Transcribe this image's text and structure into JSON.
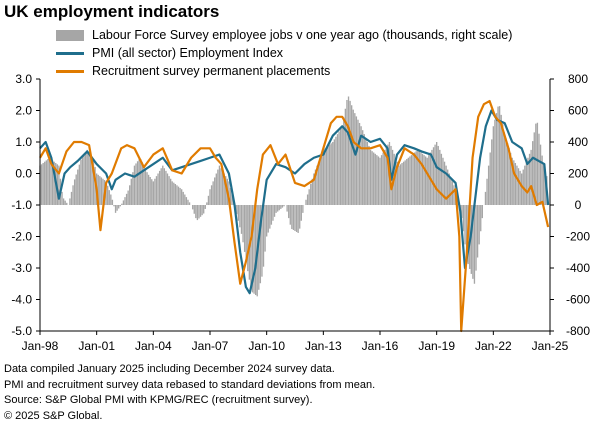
{
  "chart_data": {
    "type": "bar+line",
    "title": "UK employment indicators",
    "legend_position": "top",
    "grid": false,
    "x_tick_labels": [
      "Jan-98",
      "Jan-01",
      "Jan-04",
      "Jan-07",
      "Jan-10",
      "Jan-13",
      "Jan-16",
      "Jan-19",
      "Jan-22",
      "Jan-25"
    ],
    "x_range": [
      1998.0,
      2025.0
    ],
    "y_left": {
      "range": [
        -5.0,
        3.0
      ],
      "ticks": [
        "3.0",
        "2.0",
        "1.0",
        "0.0",
        "-1.0",
        "-2.0",
        "-3.0",
        "-4.0",
        "-5.0"
      ]
    },
    "y_right": {
      "range": [
        -800,
        800
      ],
      "ticks": [
        "800",
        "600",
        "400",
        "200",
        "0",
        "-200",
        "-400",
        "-600",
        "-800"
      ]
    },
    "series": [
      {
        "name": "Labour Force Survey employee jobs v one year ago (thousands, right scale)",
        "type": "bar",
        "axis": "right",
        "color": "#a6a6a6",
        "points": [
          [
            1998.0,
            250
          ],
          [
            1998.5,
            300
          ],
          [
            1999.0,
            250
          ],
          [
            1999.2,
            50
          ],
          [
            1999.5,
            0
          ],
          [
            1999.8,
            150
          ],
          [
            2000.2,
            300
          ],
          [
            2000.5,
            350
          ],
          [
            2000.8,
            300
          ],
          [
            2001.0,
            200
          ],
          [
            2001.5,
            150
          ],
          [
            2001.8,
            50
          ],
          [
            2002.0,
            -50
          ],
          [
            2002.3,
            0
          ],
          [
            2002.7,
            100
          ],
          [
            2003.0,
            250
          ],
          [
            2003.3,
            300
          ],
          [
            2003.7,
            200
          ],
          [
            2004.0,
            150
          ],
          [
            2004.5,
            250
          ],
          [
            2005.0,
            150
          ],
          [
            2005.5,
            100
          ],
          [
            2006.0,
            0
          ],
          [
            2006.3,
            -100
          ],
          [
            2006.7,
            -50
          ],
          [
            2007.0,
            100
          ],
          [
            2007.5,
            250
          ],
          [
            2008.0,
            150
          ],
          [
            2008.3,
            0
          ],
          [
            2008.7,
            -200
          ],
          [
            2009.0,
            -420
          ],
          [
            2009.2,
            -550
          ],
          [
            2009.5,
            -580
          ],
          [
            2009.8,
            -430
          ],
          [
            2010.0,
            -200
          ],
          [
            2010.5,
            -50
          ],
          [
            2011.0,
            0
          ],
          [
            2011.3,
            -150
          ],
          [
            2011.7,
            -180
          ],
          [
            2012.0,
            0
          ],
          [
            2012.5,
            200
          ],
          [
            2013.0,
            350
          ],
          [
            2013.5,
            400
          ],
          [
            2014.0,
            500
          ],
          [
            2014.3,
            700
          ],
          [
            2014.6,
            600
          ],
          [
            2015.0,
            500
          ],
          [
            2015.5,
            350
          ],
          [
            2016.0,
            300
          ],
          [
            2016.5,
            400
          ],
          [
            2017.0,
            250
          ],
          [
            2017.5,
            300
          ],
          [
            2018.0,
            350
          ],
          [
            2018.5,
            300
          ],
          [
            2019.0,
            400
          ],
          [
            2019.5,
            250
          ],
          [
            2020.0,
            100
          ],
          [
            2020.3,
            -50
          ],
          [
            2020.6,
            -350
          ],
          [
            2021.0,
            -500
          ],
          [
            2021.3,
            -200
          ],
          [
            2021.6,
            100
          ],
          [
            2022.0,
            500
          ],
          [
            2022.3,
            650
          ],
          [
            2022.6,
            450
          ],
          [
            2023.0,
            300
          ],
          [
            2023.5,
            200
          ],
          [
            2024.0,
            350
          ],
          [
            2024.3,
            550
          ],
          [
            2024.6,
            300
          ],
          [
            2024.9,
            150
          ]
        ]
      },
      {
        "name": "PMI (all sector) Employment Index",
        "type": "line",
        "axis": "left",
        "color": "#1f6e8c",
        "points": [
          [
            1998.0,
            0.8
          ],
          [
            1998.3,
            1.0
          ],
          [
            1998.6,
            0.5
          ],
          [
            1999.0,
            -0.8
          ],
          [
            1999.3,
            0.0
          ],
          [
            1999.6,
            0.2
          ],
          [
            2000.0,
            0.4
          ],
          [
            2000.5,
            0.7
          ],
          [
            2001.0,
            0.3
          ],
          [
            2001.5,
            0.0
          ],
          [
            2001.8,
            -0.5
          ],
          [
            2002.0,
            -0.2
          ],
          [
            2002.5,
            0.0
          ],
          [
            2003.0,
            -0.1
          ],
          [
            2003.5,
            0.1
          ],
          [
            2004.0,
            0.3
          ],
          [
            2004.5,
            0.5
          ],
          [
            2005.0,
            0.1
          ],
          [
            2005.5,
            0.2
          ],
          [
            2006.0,
            0.3
          ],
          [
            2006.5,
            0.4
          ],
          [
            2007.0,
            0.5
          ],
          [
            2007.5,
            0.6
          ],
          [
            2008.0,
            0.0
          ],
          [
            2008.3,
            -1.0
          ],
          [
            2008.6,
            -2.5
          ],
          [
            2008.9,
            -3.6
          ],
          [
            2009.1,
            -3.8
          ],
          [
            2009.4,
            -3.0
          ],
          [
            2009.7,
            -1.5
          ],
          [
            2010.0,
            -0.2
          ],
          [
            2010.5,
            0.3
          ],
          [
            2011.0,
            0.2
          ],
          [
            2011.5,
            0.0
          ],
          [
            2012.0,
            0.3
          ],
          [
            2012.5,
            0.5
          ],
          [
            2013.0,
            0.6
          ],
          [
            2013.5,
            1.2
          ],
          [
            2014.0,
            1.5
          ],
          [
            2014.3,
            1.3
          ],
          [
            2014.7,
            0.6
          ],
          [
            2015.0,
            1.2
          ],
          [
            2015.5,
            1.0
          ],
          [
            2016.0,
            1.1
          ],
          [
            2016.4,
            0.8
          ],
          [
            2016.6,
            -0.2
          ],
          [
            2016.9,
            0.6
          ],
          [
            2017.3,
            0.9
          ],
          [
            2017.8,
            0.8
          ],
          [
            2018.2,
            0.7
          ],
          [
            2018.7,
            0.6
          ],
          [
            2019.0,
            0.2
          ],
          [
            2019.5,
            0.0
          ],
          [
            2020.0,
            -0.3
          ],
          [
            2020.25,
            -1.2
          ],
          [
            2020.5,
            -3.0
          ],
          [
            2020.8,
            -2.0
          ],
          [
            2021.0,
            -1.0
          ],
          [
            2021.3,
            0.5
          ],
          [
            2021.6,
            1.5
          ],
          [
            2021.9,
            2.0
          ],
          [
            2022.2,
            1.7
          ],
          [
            2022.6,
            1.6
          ],
          [
            2023.0,
            1.0
          ],
          [
            2023.5,
            0.8
          ],
          [
            2023.8,
            0.3
          ],
          [
            2024.1,
            0.5
          ],
          [
            2024.4,
            0.4
          ],
          [
            2024.7,
            0.3
          ],
          [
            2024.9,
            -1.0
          ]
        ]
      },
      {
        "name": "Recruitment survey permanent placements",
        "type": "line",
        "axis": "left",
        "color": "#e07b00",
        "points": [
          [
            1998.0,
            0.5
          ],
          [
            1998.3,
            0.8
          ],
          [
            1998.6,
            0.3
          ],
          [
            1999.0,
            0.0
          ],
          [
            1999.4,
            0.7
          ],
          [
            1999.8,
            1.0
          ],
          [
            2000.2,
            1.0
          ],
          [
            2000.6,
            0.9
          ],
          [
            2001.0,
            -0.5
          ],
          [
            2001.2,
            -1.8
          ],
          [
            2001.5,
            -0.3
          ],
          [
            2001.8,
            0.0
          ],
          [
            2002.3,
            0.8
          ],
          [
            2002.6,
            0.9
          ],
          [
            2003.0,
            0.8
          ],
          [
            2003.5,
            0.2
          ],
          [
            2004.0,
            0.6
          ],
          [
            2004.5,
            0.8
          ],
          [
            2005.0,
            0.1
          ],
          [
            2005.5,
            0.0
          ],
          [
            2006.0,
            0.5
          ],
          [
            2006.5,
            0.8
          ],
          [
            2007.0,
            0.8
          ],
          [
            2007.3,
            0.5
          ],
          [
            2007.6,
            0.3
          ],
          [
            2008.0,
            -0.8
          ],
          [
            2008.3,
            -2.2
          ],
          [
            2008.6,
            -3.5
          ],
          [
            2008.9,
            -2.8
          ],
          [
            2009.2,
            -2.0
          ],
          [
            2009.5,
            -0.5
          ],
          [
            2009.8,
            0.6
          ],
          [
            2010.2,
            0.9
          ],
          [
            2010.6,
            0.3
          ],
          [
            2011.0,
            0.6
          ],
          [
            2011.5,
            -0.3
          ],
          [
            2012.0,
            -0.4
          ],
          [
            2012.5,
            -0.2
          ],
          [
            2013.0,
            0.8
          ],
          [
            2013.4,
            1.6
          ],
          [
            2013.7,
            1.8
          ],
          [
            2014.0,
            1.8
          ],
          [
            2014.3,
            1.5
          ],
          [
            2014.6,
            1.0
          ],
          [
            2015.0,
            0.8
          ],
          [
            2015.5,
            0.8
          ],
          [
            2016.0,
            0.9
          ],
          [
            2016.4,
            0.5
          ],
          [
            2016.6,
            -0.5
          ],
          [
            2016.9,
            0.2
          ],
          [
            2017.3,
            0.8
          ],
          [
            2017.8,
            0.6
          ],
          [
            2018.2,
            0.3
          ],
          [
            2018.7,
            -0.2
          ],
          [
            2019.0,
            -0.5
          ],
          [
            2019.5,
            -0.8
          ],
          [
            2020.0,
            -0.5
          ],
          [
            2020.2,
            -2.0
          ],
          [
            2020.3,
            -5.0
          ],
          [
            2020.6,
            -2.5
          ],
          [
            2020.9,
            0.5
          ],
          [
            2021.2,
            1.8
          ],
          [
            2021.5,
            2.2
          ],
          [
            2021.8,
            2.3
          ],
          [
            2022.1,
            1.8
          ],
          [
            2022.4,
            1.6
          ],
          [
            2022.8,
            0.8
          ],
          [
            2023.1,
            0.0
          ],
          [
            2023.5,
            -0.4
          ],
          [
            2023.8,
            -0.6
          ],
          [
            2024.0,
            -0.4
          ],
          [
            2024.3,
            -1.0
          ],
          [
            2024.6,
            -0.9
          ],
          [
            2024.9,
            -1.7
          ]
        ]
      }
    ]
  },
  "notes": [
    "Data compiled January 2025 including December 2024 survey data.",
    "PMI and recruitment survey data rebased to standard deviations from mean.",
    "Source: S&P Global PMI with KPMG/REC (recruitment survey).",
    "© 2025 S&P Global."
  ]
}
